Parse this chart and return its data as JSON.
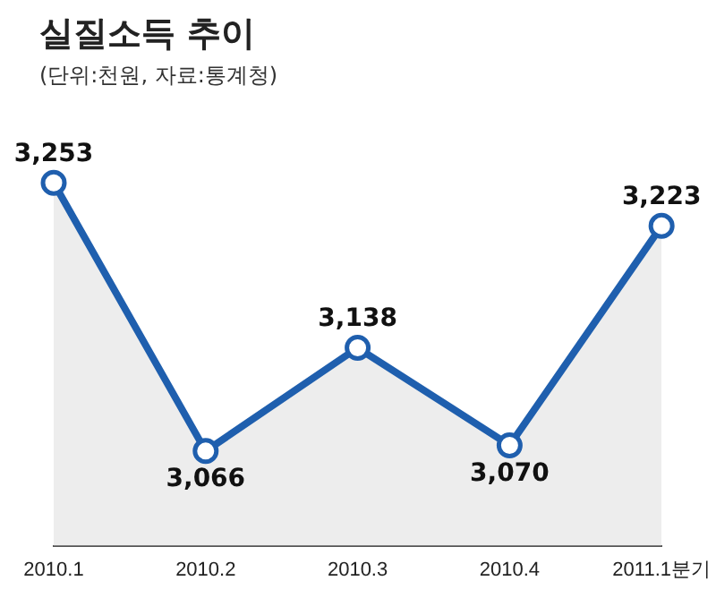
{
  "chart_data": {
    "type": "area",
    "title": "실질소득 추이",
    "subtitle": "(단위:천원, 자료:통계청)",
    "categories": [
      "2010.1",
      "2010.2",
      "2010.3",
      "2010.4",
      "2011.1분기"
    ],
    "series": [
      {
        "color": "#1f5fae",
        "values": [
          3253,
          3066,
          3138,
          3070,
          3223
        ],
        "value_labels": [
          "3,253",
          "3,066",
          "3,138",
          "3,070",
          "3,223"
        ]
      }
    ],
    "tick_labels": "x",
    "marker": "circle",
    "grid": false,
    "legend": false
  }
}
